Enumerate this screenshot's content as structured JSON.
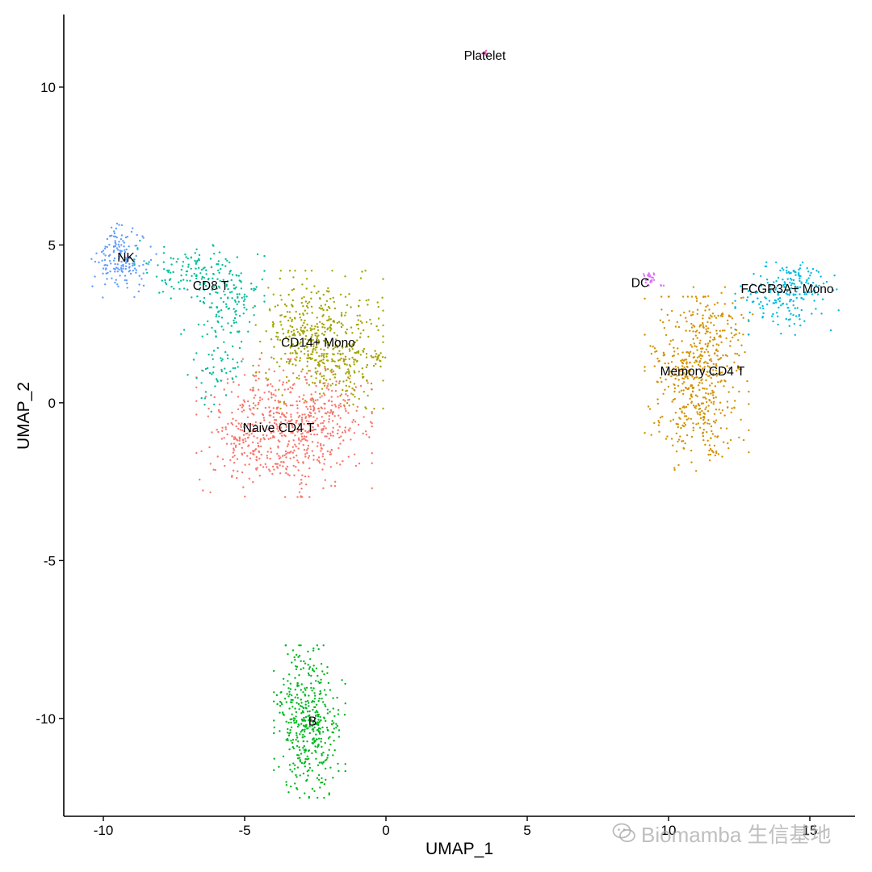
{
  "chart_data": {
    "type": "scatter",
    "xlabel": "UMAP_1",
    "ylabel": "UMAP_2",
    "xlim": [
      -11.4,
      16.6
    ],
    "ylim": [
      -13.1,
      12.3
    ],
    "x_ticks": [
      -10,
      -5,
      0,
      5,
      10,
      15
    ],
    "y_ticks": [
      -10,
      -5,
      0,
      5,
      10
    ],
    "grid": false,
    "legend": "none",
    "point_size": 2,
    "series": [
      {
        "name": "Naive CD4 T",
        "color": "#F8766D",
        "label_x": -3.8,
        "label_y": -0.8,
        "blobs": [
          {
            "cx": -3.6,
            "cy": -0.8,
            "sx": 1.35,
            "sy": 0.95,
            "n": 560
          },
          {
            "cx": -2.2,
            "cy": -0.3,
            "sx": 0.7,
            "sy": 0.7,
            "n": 90
          },
          {
            "cx": -5.2,
            "cy": -1.2,
            "sx": 0.5,
            "sy": 0.4,
            "n": 50
          }
        ]
      },
      {
        "name": "CD14+ Mono",
        "color": "#A3A500",
        "label_x": -2.4,
        "label_y": 1.9,
        "blobs": [
          {
            "cx": -2.4,
            "cy": 2.0,
            "sx": 1.0,
            "sy": 0.95,
            "n": 460
          },
          {
            "cx": -1.2,
            "cy": 1.1,
            "sx": 0.45,
            "sy": 0.6,
            "n": 70
          },
          {
            "cx": -0.3,
            "cy": 1.45,
            "sx": 0.15,
            "sy": 0.12,
            "n": 12
          }
        ]
      },
      {
        "name": "Memory CD4 T",
        "color": "#D39200",
        "label_x": 11.2,
        "label_y": 1.0,
        "blobs": [
          {
            "cx": 11.0,
            "cy": 0.6,
            "sx": 0.8,
            "sy": 1.2,
            "n": 480
          },
          {
            "cx": 11.6,
            "cy": 2.4,
            "sx": 0.6,
            "sy": 0.55,
            "n": 90
          },
          {
            "cx": 11.6,
            "cy": -1.5,
            "sx": 0.15,
            "sy": 0.12,
            "n": 10
          }
        ]
      },
      {
        "name": "CD8 T",
        "color": "#00BE9A",
        "label_x": -6.2,
        "label_y": 3.7,
        "blobs": [
          {
            "cx": -6.6,
            "cy": 4.1,
            "sx": 1.0,
            "sy": 0.45,
            "n": 150
          },
          {
            "cx": -5.4,
            "cy": 3.0,
            "sx": 0.45,
            "sy": 0.55,
            "n": 90
          },
          {
            "cx": -6.0,
            "cy": 1.1,
            "sx": 0.6,
            "sy": 0.6,
            "n": 60
          }
        ]
      },
      {
        "name": "FCGR3A+ Mono",
        "color": "#00BAE0",
        "label_x": 14.2,
        "label_y": 3.6,
        "blobs": [
          {
            "cx": 14.2,
            "cy": 3.3,
            "sx": 0.8,
            "sy": 0.5,
            "n": 170
          },
          {
            "cx": 14.6,
            "cy": 3.9,
            "sx": 0.35,
            "sy": 0.2,
            "n": 40
          }
        ]
      },
      {
        "name": "NK",
        "color": "#619CFF",
        "label_x": -9.2,
        "label_y": 4.6,
        "blobs": [
          {
            "cx": -9.5,
            "cy": 4.6,
            "sx": 0.4,
            "sy": 0.55,
            "n": 140
          },
          {
            "cx": -8.7,
            "cy": 4.4,
            "sx": 0.25,
            "sy": 0.3,
            "n": 20
          }
        ]
      },
      {
        "name": "B",
        "color": "#00B81F",
        "label_x": -2.6,
        "label_y": -10.1,
        "blobs": [
          {
            "cx": -2.7,
            "cy": -10.1,
            "sx": 0.55,
            "sy": 1.05,
            "n": 430
          }
        ]
      },
      {
        "name": "DC",
        "color": "#DB72FB",
        "label_x": 9.0,
        "label_y": 3.8,
        "blobs": [
          {
            "cx": 9.3,
            "cy": 3.95,
            "sx": 0.15,
            "sy": 0.12,
            "n": 22
          },
          {
            "cx": 9.8,
            "cy": 3.7,
            "sx": 0.06,
            "sy": 0.05,
            "n": 3
          }
        ]
      },
      {
        "name": "Platelet",
        "color": "#FF61C3",
        "label_x": 3.5,
        "label_y": 11.0,
        "blobs": [
          {
            "cx": 3.5,
            "cy": 11.1,
            "sx": 0.05,
            "sy": 0.04,
            "n": 8
          }
        ]
      }
    ]
  },
  "watermark": {
    "text": "Biomamba 生信基地",
    "icon": "wechat-icon"
  }
}
